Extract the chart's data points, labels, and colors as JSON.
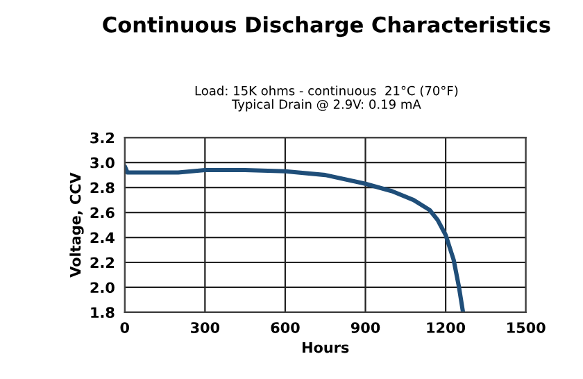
{
  "chart_data": {
    "type": "line",
    "title": "Continuous Discharge Characteristics",
    "subtitle": "Load: 15K ohms - continuous  21°C (70°F)\nTypical Drain @ 2.9V: 0.19 mA",
    "xlabel": "Hours",
    "ylabel": "Voltage, CCV",
    "x": [
      0,
      10,
      100,
      200,
      300,
      450,
      600,
      750,
      900,
      1000,
      1080,
      1140,
      1170,
      1200,
      1230,
      1250,
      1265
    ],
    "series": [
      {
        "color": "#1f4e79",
        "values": [
          2.97,
          2.92,
          2.92,
          2.92,
          2.94,
          2.94,
          2.93,
          2.9,
          2.83,
          2.77,
          2.7,
          2.62,
          2.54,
          2.42,
          2.22,
          2.0,
          1.8
        ]
      }
    ],
    "xlim": [
      0,
      1500
    ],
    "xticks": [
      0,
      300,
      600,
      900,
      1200,
      1500
    ],
    "ylim": [
      1.8,
      3.2
    ],
    "yticks": [
      {
        "value": 1.8,
        "label": "1.8"
      },
      {
        "value": 2.0,
        "label": "2.0"
      },
      {
        "value": 2.2,
        "label": "2.2"
      },
      {
        "value": 2.4,
        "label": "2.4"
      },
      {
        "value": 2.6,
        "label": "2.6"
      },
      {
        "value": 2.8,
        "label": "2.8"
      },
      {
        "value": 3.0,
        "label": "3.0"
      },
      {
        "value": 3.2,
        "label": "3.2"
      }
    ],
    "grid": true,
    "legend": false
  }
}
